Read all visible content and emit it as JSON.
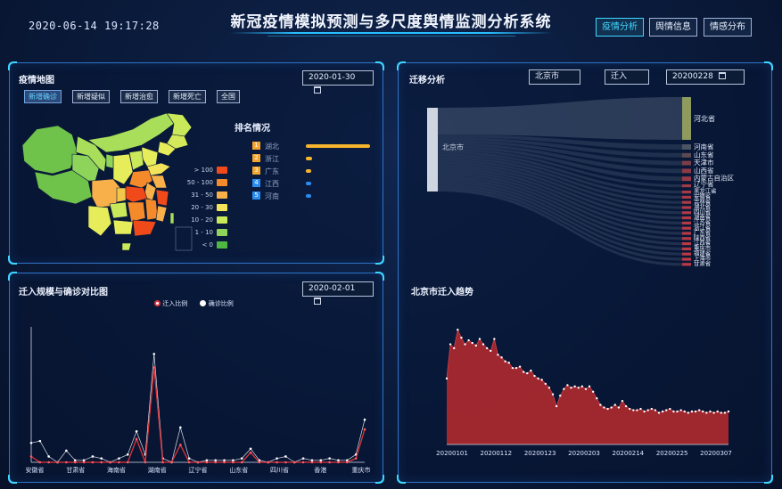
{
  "header": {
    "datetime": "2020-06-14 19:17:28",
    "title": "新冠疫情模拟预测与多尺度舆情监测分析系统",
    "nav": [
      {
        "label": "疫情分析",
        "active": true
      },
      {
        "label": "舆情信息",
        "active": false
      },
      {
        "label": "情感分布",
        "active": false
      }
    ]
  },
  "map_panel": {
    "title": "疫情地图",
    "date": "2020-01-30",
    "tabs": [
      "新增确诊",
      "新增疑似",
      "新增治愈",
      "新增死亡",
      "全国"
    ],
    "active_tab": 0,
    "legend": [
      {
        "label": "> 100",
        "color": "#f04a1a"
      },
      {
        "label": "50 - 100",
        "color": "#f58a2a"
      },
      {
        "label": "31 - 50",
        "color": "#f7b04a"
      },
      {
        "label": "20 - 30",
        "color": "#f2e35a"
      },
      {
        "label": "10 - 20",
        "color": "#c9e85a"
      },
      {
        "label": "1 - 10",
        "color": "#8fd45a"
      },
      {
        "label": "< 0",
        "color": "#4fb842"
      }
    ],
    "ranking": {
      "title": "排名情况",
      "items": [
        {
          "rank": "1",
          "name": "湖北",
          "value": 100,
          "color": "#f6b52c",
          "num_color": "#f6a52c"
        },
        {
          "rank": "2",
          "name": "浙江",
          "value": 10,
          "color": "#f6b52c",
          "num_color": "#f6a52c"
        },
        {
          "rank": "3",
          "name": "广东",
          "value": 8,
          "color": "#f6b52c",
          "num_color": "#f6a52c"
        },
        {
          "rank": "4",
          "name": "江西",
          "value": 6,
          "color": "#2a8cf0",
          "num_color": "#2a8cf0"
        },
        {
          "rank": "5",
          "name": "河南",
          "value": 5,
          "color": "#2a8cf0",
          "num_color": "#2a8cf0"
        }
      ]
    }
  },
  "compare_panel": {
    "title": "迁入规模与确诊对比图",
    "date": "2020-02-01",
    "chart_data": {
      "type": "line",
      "series": [
        {
          "name": "迁入比例",
          "color": "#e0353a",
          "values": [
            3,
            0,
            0,
            0,
            0,
            0,
            0,
            0,
            0,
            0,
            0,
            0,
            12,
            0,
            49,
            0,
            0,
            9,
            0,
            0,
            0,
            0,
            0,
            0,
            0,
            5,
            0,
            0,
            0,
            0,
            0,
            0,
            0,
            0,
            0,
            0,
            0,
            2,
            17
          ]
        },
        {
          "name": "确诊比例",
          "color": "#d9dde8",
          "values": [
            10,
            11,
            3,
            0,
            6,
            1,
            1,
            3,
            2,
            0,
            2,
            4,
            16,
            4,
            56,
            2,
            0,
            18,
            2,
            0,
            1,
            1,
            1,
            1,
            2,
            7,
            1,
            0,
            2,
            3,
            0,
            2,
            1,
            1,
            2,
            1,
            1,
            4,
            22
          ]
        }
      ],
      "x_labels": [
        "安徽省",
        "甘肃省",
        "海南省",
        "湖南省",
        "辽宁省",
        "山东省",
        "四川省",
        "香港",
        "重庆市"
      ],
      "ylim": [
        0,
        70
      ]
    }
  },
  "migration_panel": {
    "title": "迁移分析",
    "city": "北京市",
    "direction": "迁入",
    "date": "20200228",
    "source_label": "北京市",
    "targets": [
      {
        "name": "河北省",
        "color": "#8f9a5e"
      },
      {
        "name": "河南省",
        "color": "#4b5463"
      },
      {
        "name": "山东省",
        "color": "#5c4a52"
      },
      {
        "name": "天津市",
        "color": "#7b3e48"
      },
      {
        "name": "山西省",
        "color": "#8c3a44"
      },
      {
        "name": "内蒙古自治区",
        "color": "#963b45"
      },
      {
        "name": "辽宁省",
        "color": "#a03a45"
      },
      {
        "name": "黑龙江省",
        "color": "#a63a45"
      },
      {
        "name": "安徽省",
        "color": "#a93a45"
      },
      {
        "name": "吉林省",
        "color": "#ac3a45"
      },
      {
        "name": "湖北省",
        "color": "#ae3a45"
      },
      {
        "name": "四川省",
        "color": "#b03a45"
      },
      {
        "name": "湖南省",
        "color": "#b23a45"
      },
      {
        "name": "江苏省",
        "color": "#b43a45"
      },
      {
        "name": "浙江省",
        "color": "#b53a45"
      },
      {
        "name": "广东省",
        "color": "#b63a45"
      },
      {
        "name": "陕西省",
        "color": "#b73a45"
      },
      {
        "name": "江西省",
        "color": "#b83a45"
      },
      {
        "name": "重庆市",
        "color": "#b93a45"
      },
      {
        "name": "福建省",
        "color": "#ba3a45"
      },
      {
        "name": "上海市",
        "color": "#bb3a45"
      },
      {
        "name": "甘肃省",
        "color": "#bc3a45"
      }
    ]
  },
  "trend_panel": {
    "title": "北京市迁入趋势",
    "chart_data": {
      "type": "area",
      "color": "#a8282e",
      "x_labels": [
        "20200101",
        "20200112",
        "20200123",
        "20200203",
        "20200214",
        "20200225",
        "20200307"
      ],
      "values": [
        50,
        76,
        73,
        87,
        81,
        76,
        79,
        77,
        75,
        80,
        76,
        73,
        71,
        80,
        68,
        66,
        63,
        62,
        58,
        58,
        59,
        55,
        54,
        56,
        52,
        50,
        49,
        46,
        43,
        38,
        29,
        37,
        42,
        45,
        43,
        44,
        43,
        44,
        42,
        44,
        40,
        35,
        30,
        28,
        27,
        28,
        30,
        28,
        33,
        29,
        27,
        26,
        26,
        27,
        25,
        26,
        27,
        26,
        24,
        25,
        26,
        27,
        25,
        25,
        26,
        25,
        24,
        25,
        25,
        26,
        25,
        24,
        25,
        24,
        25,
        24,
        24,
        25
      ],
      "ylim": [
        0,
        100
      ]
    }
  }
}
